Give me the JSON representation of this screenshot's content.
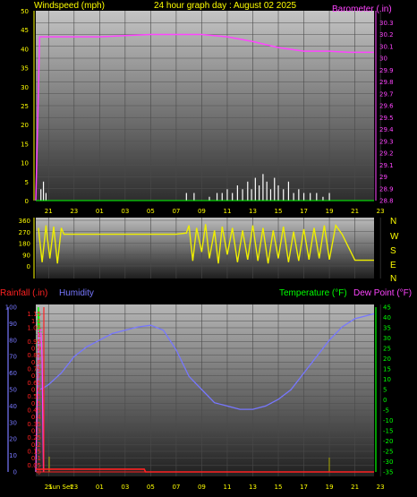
{
  "header": {
    "windspeed_label": "Windspeed (mph)",
    "title": "24 hour graph day : August 02 2025",
    "barometer_label": "Barometer (.in)"
  },
  "lower_labels": {
    "rainfall": "Rainfall (.in)",
    "humidity": "Humidity",
    "temperature": "Temperature (°F)",
    "dewpoint": "Dew Point (°F)"
  },
  "direction_letters": [
    "N",
    "W",
    "S",
    "E",
    "N"
  ],
  "colors": {
    "text_yellow": "#ffff00",
    "barometer": "#ff44ff",
    "wind": "#ffffff",
    "direction": "#eeee00",
    "humidity": "#7777ff",
    "temperature": "#00ff00",
    "dewpoint": "#ff44ff",
    "rainfall": "#ff2222",
    "sun_text": "#ffff00"
  },
  "chart_data": [
    {
      "type": "line",
      "title": "24 hour graph day : August 02 2025",
      "x_ticks": [
        "21",
        "23",
        "01",
        "03",
        "05",
        "07",
        "09",
        "11",
        "13",
        "15",
        "17",
        "19",
        "21",
        "23"
      ],
      "left_axis": {
        "label": "Windspeed (mph)",
        "ticks": [
          0,
          5,
          10,
          15,
          20,
          25,
          30,
          35,
          40,
          45,
          50
        ],
        "ylim": [
          0,
          50
        ]
      },
      "right_axis": {
        "label": "Barometer (.in)",
        "ticks": [
          "28.8",
          "28.9",
          "29",
          "29.1",
          "29.2",
          "29.3",
          "29.4",
          "29.5",
          "29.6",
          "29.7",
          "29.8",
          "29.9",
          "30",
          "30.1",
          "30.2",
          "30.3"
        ],
        "ylim": [
          28.8,
          30.4
        ]
      },
      "series": [
        {
          "name": "Barometer (.in)",
          "axis": "right",
          "x": [
            20.0,
            20.3,
            21,
            23,
            25,
            27,
            29,
            31,
            33,
            35,
            37,
            39,
            41,
            43,
            44.5,
            46.5
          ],
          "values": [
            28.8,
            30.18,
            30.18,
            30.18,
            30.18,
            30.19,
            30.2,
            30.2,
            30.2,
            30.18,
            30.14,
            30.09,
            30.06,
            30.06,
            30.05,
            30.05
          ]
        },
        {
          "name": "Windspeed (mph)",
          "axis": "left",
          "x": [
            20.4,
            20.6,
            20.8,
            31.8,
            32.4,
            33.6,
            34.2,
            34.6,
            35.0,
            35.4,
            35.8,
            36.2,
            36.6,
            36.9,
            37.2,
            37.5,
            37.8,
            38.1,
            38.4,
            38.7,
            39.0,
            39.4,
            39.8,
            40.2,
            40.6,
            41.0,
            41.5,
            42.0,
            42.5,
            43.0
          ],
          "values": [
            3,
            5,
            2,
            2,
            2,
            1,
            2,
            2,
            3,
            2,
            4,
            3,
            5,
            3,
            6,
            4,
            7,
            5,
            3,
            6,
            4,
            3,
            5,
            2,
            3,
            2,
            2,
            2,
            1,
            2
          ]
        }
      ]
    },
    {
      "type": "scatter",
      "x_ticks": [],
      "ylim": [
        0,
        360
      ],
      "y_ticks": [
        0,
        90,
        180,
        270,
        360
      ],
      "series": [
        {
          "name": "Wind Direction",
          "x": [
            20.2,
            20.5,
            20.8,
            21.1,
            21.4,
            21.7,
            22.0,
            22.2,
            23.0,
            25.0,
            27.0,
            29.0,
            31.0,
            31.8,
            32.0,
            32.3,
            32.6,
            33.0,
            33.3,
            33.6,
            34.0,
            34.3,
            34.6,
            35.0,
            35.4,
            35.8,
            36.2,
            36.6,
            37.0,
            37.4,
            37.8,
            38.2,
            38.6,
            39.0,
            39.4,
            39.8,
            40.2,
            40.6,
            41.0,
            41.4,
            41.8,
            42.2,
            42.6,
            43.0,
            43.5,
            44.0,
            45.0,
            46.5
          ],
          "values": [
            300,
            30,
            320,
            60,
            310,
            20,
            300,
            250,
            250,
            250,
            250,
            250,
            250,
            260,
            320,
            40,
            300,
            110,
            330,
            60,
            280,
            20,
            310,
            90,
            300,
            30,
            280,
            50,
            320,
            40,
            300,
            20,
            280,
            60,
            310,
            30,
            270,
            40,
            290,
            50,
            300,
            60,
            320,
            50,
            320,
            250,
            45,
            45
          ]
        }
      ]
    },
    {
      "type": "line",
      "x_ticks": [
        "Sun Set",
        "21",
        "23",
        "01",
        "03",
        "05",
        "07",
        "09",
        "11",
        "13",
        "15",
        "17",
        "19",
        "21",
        "23"
      ],
      "left_axis": {
        "label": "Rainfall (.in)",
        "ticks": [
          "0",
          "0.05",
          "0.1",
          "0.15",
          "0.2",
          "0.25",
          "0.3",
          "0.35",
          "0.4",
          "0.45",
          "0.5",
          "0.55",
          "0.6",
          "0.65",
          "0.7",
          "0.75",
          "0.8",
          "0.85",
          "0.9",
          "0.95",
          "1",
          "1.05",
          "1.1",
          "1.15"
        ],
        "ylim": [
          0,
          1.2
        ]
      },
      "humidity_axis": {
        "label": "Humidity",
        "ticks": [
          0,
          10,
          20,
          30,
          40,
          50,
          60,
          70,
          80,
          90,
          100
        ],
        "ylim": [
          0,
          100
        ]
      },
      "right_axis": {
        "label": "Temperature (°F)",
        "ticks": [
          -35,
          -30,
          -25,
          -20,
          -15,
          -10,
          -5,
          0,
          5,
          10,
          15,
          20,
          25,
          30,
          35,
          40,
          45
        ],
        "ylim": [
          -35,
          45
        ]
      },
      "series": [
        {
          "name": "Humidity",
          "axis": "humidity",
          "x": [
            20.3,
            20.6,
            21,
            22,
            23,
            24,
            25,
            26,
            27,
            28,
            29,
            30,
            31,
            32,
            33,
            34,
            35,
            36,
            37,
            38,
            39,
            40,
            41,
            42,
            43,
            44,
            45,
            46.5
          ],
          "values": [
            50,
            51,
            53,
            60,
            70,
            76,
            80,
            84,
            86,
            88,
            89,
            86,
            74,
            58,
            50,
            42,
            40,
            38,
            38,
            40,
            44,
            50,
            60,
            70,
            80,
            88,
            93,
            96
          ]
        },
        {
          "name": "Temperature (°F)",
          "axis": "right",
          "x": [
            20.0,
            20.2,
            20.3,
            20.5
          ],
          "values": [
            -35,
            45,
            33,
            33
          ]
        },
        {
          "name": "Dew Point (°F)",
          "axis": "right",
          "x": [
            20.0,
            20.2,
            20.4,
            20.5,
            20.6
          ],
          "values": [
            -35,
            34,
            34,
            20,
            -35
          ]
        },
        {
          "name": "Rainfall (.in)",
          "axis": "left",
          "x": [
            20.0,
            20.4,
            28.5,
            28.6,
            46.5
          ],
          "values": [
            0.02,
            0.02,
            0.02,
            0,
            0
          ]
        }
      ]
    }
  ]
}
